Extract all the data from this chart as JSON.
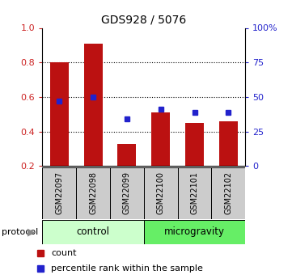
{
  "title": "GDS928 / 5076",
  "samples": [
    "GSM22097",
    "GSM22098",
    "GSM22099",
    "GSM22100",
    "GSM22101",
    "GSM22102"
  ],
  "bar_heights": [
    0.8,
    0.91,
    0.33,
    0.51,
    0.45,
    0.46
  ],
  "bar_bottom": 0.2,
  "blue_squares": [
    0.575,
    0.6,
    0.475,
    0.53,
    0.51,
    0.51
  ],
  "bar_color": "#bb1111",
  "square_color": "#2222cc",
  "ylim_left": [
    0.2,
    1.0
  ],
  "ylim_right": [
    0,
    100
  ],
  "yticks_left": [
    0.2,
    0.4,
    0.6,
    0.8,
    1.0
  ],
  "yticks_right": [
    0,
    25,
    50,
    75,
    100
  ],
  "ytick_labels_right": [
    "0",
    "25",
    "50",
    "75",
    "100%"
  ],
  "protocol_groups": [
    {
      "label": "control",
      "start": 0,
      "end": 3,
      "color": "#ccffcc"
    },
    {
      "label": "microgravity",
      "start": 3,
      "end": 6,
      "color": "#66ee66"
    }
  ],
  "protocol_label": "protocol",
  "legend_count_label": "count",
  "legend_pct_label": "percentile rank within the sample",
  "tick_label_color_left": "#cc2222",
  "tick_label_color_right": "#2222cc",
  "bar_width": 0.55,
  "sample_box_color": "#cccccc",
  "bg_color": "#ffffff"
}
